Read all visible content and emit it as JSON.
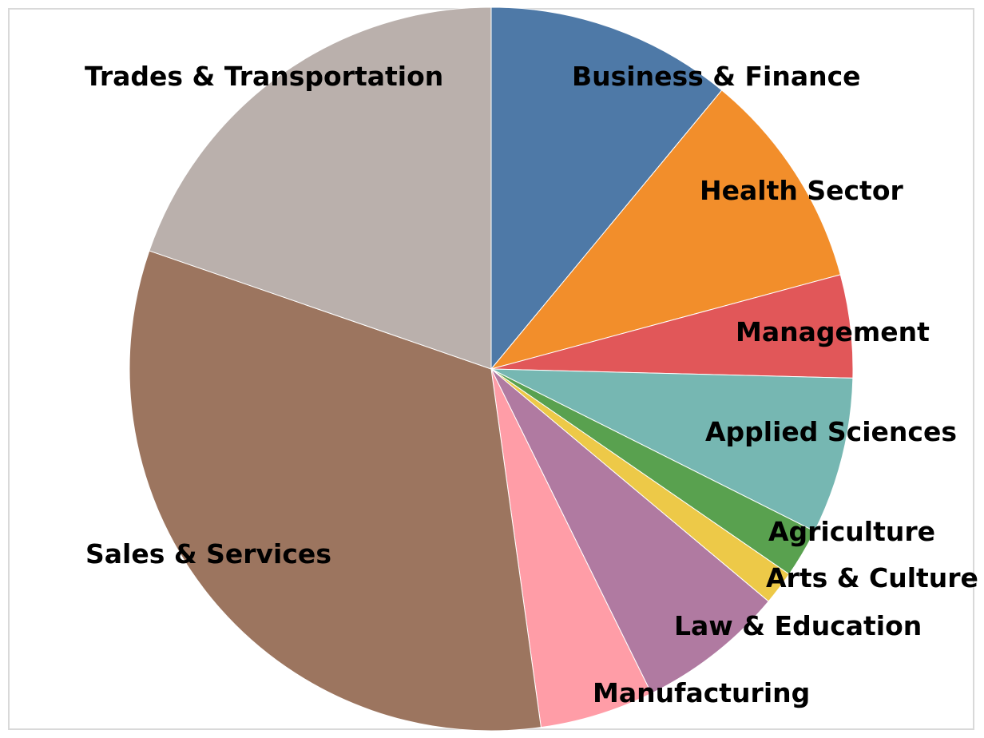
{
  "chart_data": {
    "type": "pie",
    "title": "",
    "legend": "none",
    "start": "12 o'clock, clockwise",
    "slices": [
      {
        "label": "Business & Finance",
        "value": 11.0,
        "color": "#4e79a7"
      },
      {
        "label": "Health Sector",
        "value": 9.8,
        "color": "#f28e2b"
      },
      {
        "label": "Management",
        "value": 4.6,
        "color": "#e15759"
      },
      {
        "label": "Applied Sciences",
        "value": 7.0,
        "color": "#76b7b2"
      },
      {
        "label": "Agriculture",
        "value": 2.2,
        "color": "#59a14f"
      },
      {
        "label": "Arts & Culture",
        "value": 1.5,
        "color": "#edc948"
      },
      {
        "label": "Law & Education",
        "value": 6.6,
        "color": "#b07aa1"
      },
      {
        "label": "Manufacturing",
        "value": 5.1,
        "color": "#ff9da7"
      },
      {
        "label": "Sales & Services",
        "value": 32.5,
        "color": "#9c755f"
      },
      {
        "label": "Trades & Transportation",
        "value": 19.7,
        "color": "#bab0ac"
      }
    ]
  }
}
